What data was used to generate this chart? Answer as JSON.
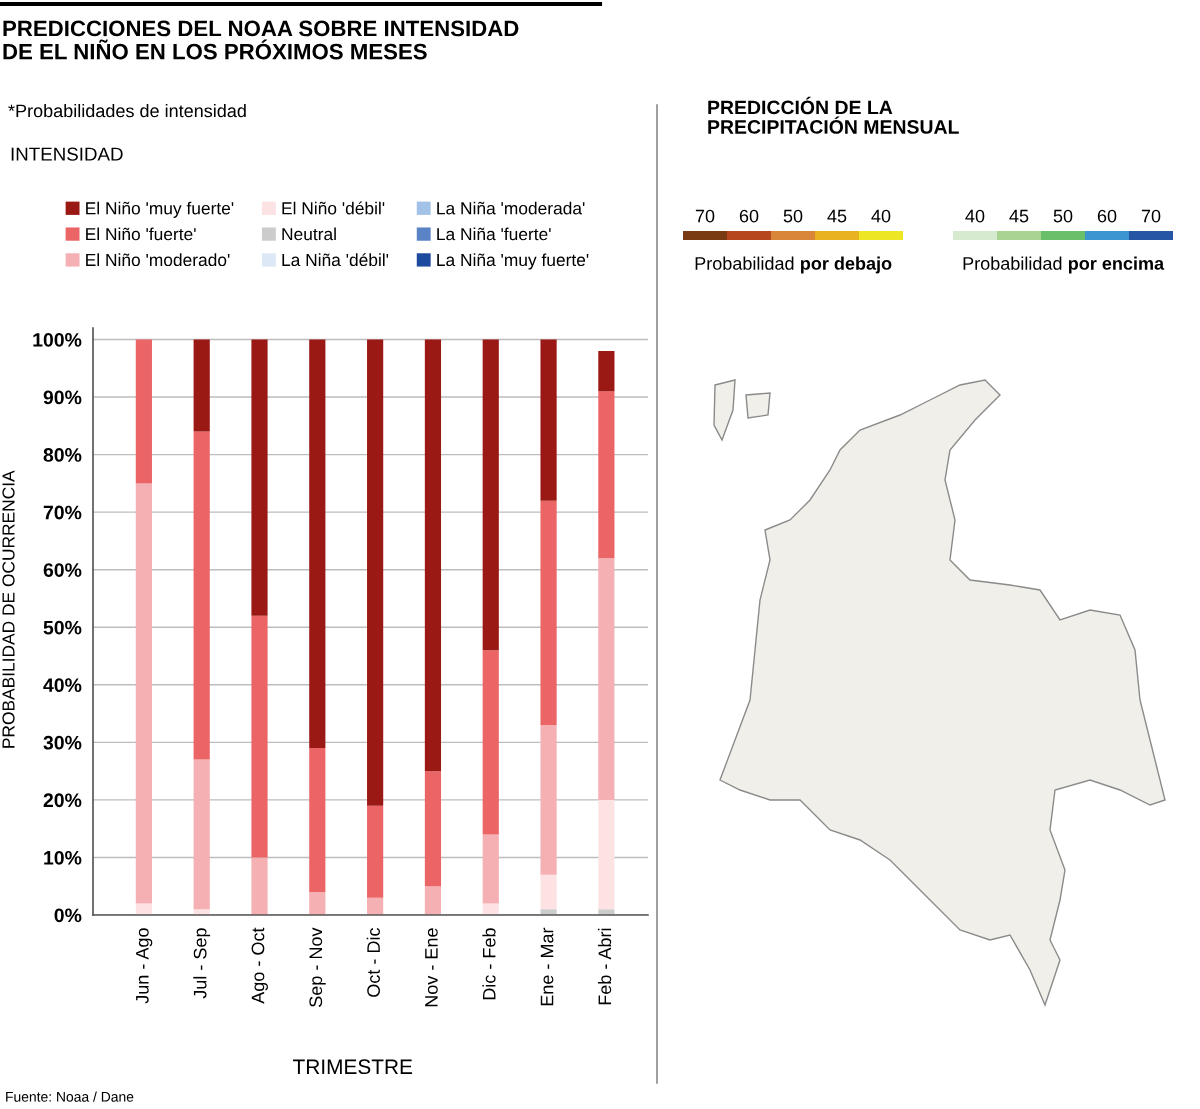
{
  "chart_data": [
    {
      "type": "bar",
      "title": "PREDICCIONES DEL NOAA SOBRE INTENSIDAD\nDE EL NIÑO EN LOS PRÓXIMOS MESES",
      "subtitle": "*Probabilidades de intensidad",
      "legend_title": "INTENSIDAD",
      "xlabel": "TRIMESTRE",
      "ylabel": "PROBABILIDAD DE OCURRENCIA",
      "categories": [
        "Jun - Ago",
        "Jul - Sep",
        "Ago - Oct",
        "Sep - Nov",
        "Oct - Dic",
        "Nov - Ene",
        "Dic - Feb",
        "Ene - Mar",
        "Feb - Abri"
      ],
      "stacked": true,
      "ylim": [
        0,
        102
      ],
      "yticks": [
        {
          "value": 0,
          "label": "0%"
        },
        {
          "value": 10,
          "label": "10%"
        },
        {
          "value": 20,
          "label": "20%"
        },
        {
          "value": 30,
          "label": "30%"
        },
        {
          "value": 40,
          "label": "40%"
        },
        {
          "value": 50,
          "label": "50%"
        },
        {
          "value": 60,
          "label": "60%"
        },
        {
          "value": 70,
          "label": "70%"
        },
        {
          "value": 80,
          "label": "80%"
        },
        {
          "value": 90,
          "label": "90%"
        },
        {
          "value": 100,
          "label": "100%"
        }
      ],
      "grid": "y",
      "legend": "top",
      "series": [
        {
          "name": "La Niña 'muy fuerte'",
          "color": "#1c4a9e",
          "values": [
            0,
            0,
            0,
            0,
            0,
            0,
            0,
            0,
            0
          ]
        },
        {
          "name": "La Niña 'fuerte'",
          "color": "#5a83c6",
          "values": [
            0,
            0,
            0,
            0,
            0,
            0,
            0,
            0,
            0
          ]
        },
        {
          "name": "La Niña 'moderada'",
          "color": "#a2c2e8",
          "values": [
            0,
            0,
            0,
            0,
            0,
            0,
            0,
            0,
            0
          ]
        },
        {
          "name": "La Niña 'débil'",
          "color": "#dde8f6",
          "values": [
            0,
            0,
            0,
            0,
            0,
            0,
            0,
            0,
            0
          ]
        },
        {
          "name": "Neutral",
          "color": "#cccccc",
          "values": [
            0,
            0,
            0,
            0,
            0,
            0,
            0,
            1,
            1
          ]
        },
        {
          "name": "El Niño 'débil'",
          "color": "#fde2e4",
          "values": [
            2,
            1,
            0,
            0,
            0,
            0,
            2,
            6,
            19
          ]
        },
        {
          "name": "El Niño 'moderado'",
          "color": "#f5b0b3",
          "values": [
            73,
            26,
            10,
            4,
            3,
            5,
            12,
            26,
            42
          ]
        },
        {
          "name": "El Niño 'fuerte'",
          "color": "#eb6566",
          "values": [
            25,
            57,
            42,
            25,
            16,
            20,
            32,
            39,
            29
          ]
        },
        {
          "name": "El Niño 'muy fuerte'",
          "color": "#9b1915",
          "values": [
            0,
            16,
            48,
            71,
            81,
            75,
            54,
            28,
            7
          ]
        }
      ],
      "annotations": [
        "Fuente: Noaa / Dane"
      ]
    },
    {
      "type": "other",
      "title": "PREDICCIÓN DE LA\nPRECIPITACIÓN MENSUAL",
      "categories": [
        "70",
        "60",
        "50",
        "45",
        "40"
      ],
      "colors": [
        "#7a3a12",
        "#b5471f",
        "#d9853a",
        "#e8b220",
        "#ece625"
      ],
      "xlabel": "Probabilidad por debajo"
    },
    {
      "type": "other",
      "categories": [
        "40",
        "45",
        "50",
        "60",
        "70"
      ],
      "colors": [
        "#d6ead0",
        "#a8d393",
        "#6abf6a",
        "#3a95d0",
        "#2755a5"
      ],
      "xlabel": "Probabilidad por encima"
    }
  ]
}
